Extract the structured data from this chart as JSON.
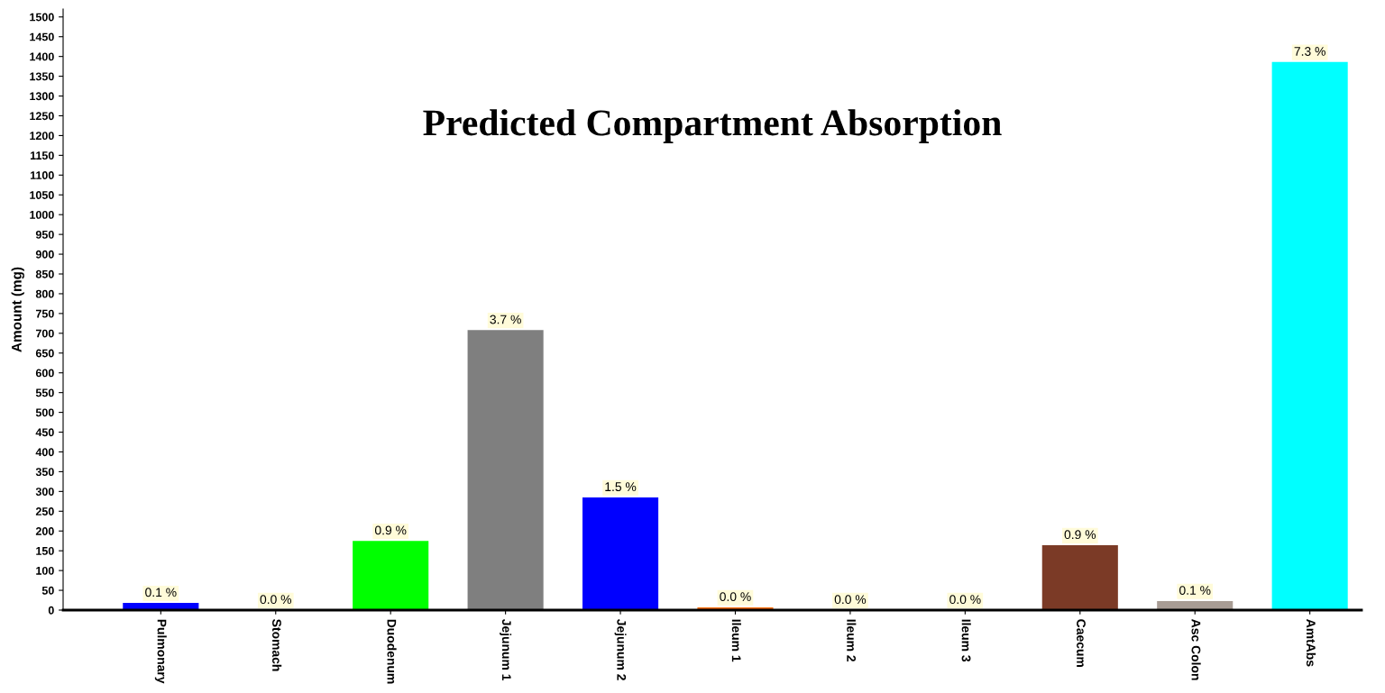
{
  "chart_data": {
    "type": "bar",
    "title": "Predicted Compartment Absorption",
    "ylabel": "Amount (mg)",
    "categories": [
      "Pulmonary",
      "Stomach",
      "Duodenum",
      "Jejunum 1",
      "Jejunum 2",
      "Ileum 1",
      "Ileum 2",
      "Ileum 3",
      "Caecum",
      "Asc Colon",
      "AmtAbs"
    ],
    "values": [
      18,
      0,
      175,
      708,
      285,
      7,
      0,
      0,
      164,
      23,
      1386
    ],
    "colors": [
      "#0000ff",
      "#ff0000",
      "#00ff00",
      "#7f7f7f",
      "#0000ff",
      "#ff6a00",
      "#ff00ff",
      "#ffff00",
      "#7b3a26",
      "#a89c94",
      "#00ffff"
    ],
    "annotations": [
      {
        "text": "0.1 %",
        "x": "Pulmonary",
        "y": 18
      },
      {
        "text": "0.0 %",
        "x": "Stomach",
        "y": 0
      },
      {
        "text": "0.9 %",
        "x": "Duodenum",
        "y": 175
      },
      {
        "text": "3.7 %",
        "x": "Jejunum 1",
        "y": 708
      },
      {
        "text": "1.5 %",
        "x": "Jejunum 2",
        "y": 285
      },
      {
        "text": "0.0 %",
        "x": "Ileum 1",
        "y": 7
      },
      {
        "text": "0.0 %",
        "x": "Ileum 2",
        "y": 0
      },
      {
        "text": "0.0 %",
        "x": "Ileum 3",
        "y": 0
      },
      {
        "text": "0.9 %",
        "x": "Caecum",
        "y": 164
      },
      {
        "text": "0.1 %",
        "x": "Asc Colon",
        "y": 23
      },
      {
        "text": "7.3 %",
        "x": "AmtAbs",
        "y": 1386
      }
    ],
    "ylim": [
      0,
      1520
    ],
    "yticks": [
      0,
      50,
      100,
      150,
      200,
      250,
      300,
      350,
      400,
      450,
      500,
      550,
      600,
      650,
      700,
      750,
      800,
      850,
      900,
      950,
      1000,
      1050,
      1100,
      1150,
      1200,
      1250,
      1300,
      1350,
      1400,
      1450,
      1500
    ],
    "grid": false,
    "legend": false
  }
}
